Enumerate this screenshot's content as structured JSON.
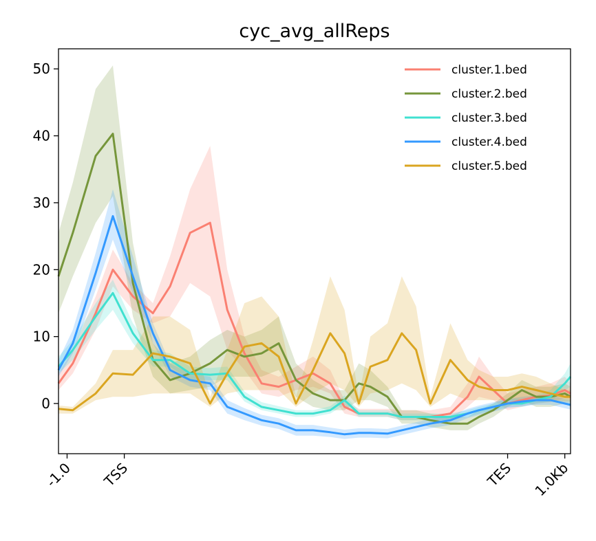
{
  "chart_data": {
    "type": "line",
    "title": "cyc_avg_allReps",
    "xlabel": "",
    "ylabel": "",
    "ylim": [
      -7.5,
      53
    ],
    "yticks": [
      0,
      10,
      20,
      30,
      40,
      50
    ],
    "xticks": [
      {
        "label": "-1.0",
        "x": -1.0
      },
      {
        "label": "TSS",
        "x": 0
      },
      {
        "label": "TES",
        "x": 6.7
      },
      {
        "label": "1.0Kb",
        "x": 7.7
      }
    ],
    "xlim": [
      -1.15,
      7.8
    ],
    "legend_position": "top-right",
    "grid": false,
    "x": [
      -1.15,
      -0.9,
      -0.5,
      -0.2,
      0.15,
      0.5,
      0.8,
      1.15,
      1.5,
      1.8,
      2.1,
      2.4,
      2.7,
      3.0,
      3.3,
      3.6,
      3.85,
      4.1,
      4.3,
      4.6,
      4.85,
      5.1,
      5.35,
      5.7,
      6.0,
      6.2,
      6.45,
      6.7,
      6.95,
      7.2,
      7.45,
      7.7,
      7.8
    ],
    "series": [
      {
        "name": "cluster.1.bed",
        "color": "#fa8072",
        "values": [
          3,
          6,
          13.5,
          20,
          16,
          13.5,
          17.5,
          25.5,
          27,
          14,
          7.5,
          3,
          2.5,
          3.5,
          4.5,
          3,
          -0.5,
          -1.5,
          -1.5,
          -1.5,
          -2,
          -2,
          -2,
          -1.5,
          1,
          4,
          2,
          0,
          0.5,
          1,
          1.2,
          2,
          1.5
        ],
        "lower": [
          2,
          4.5,
          11,
          17.5,
          14,
          12,
          13,
          18,
          16,
          8,
          5,
          1.5,
          1,
          2,
          2.5,
          1.5,
          -1.5,
          -2,
          -2,
          -2,
          -2.5,
          -2.5,
          -2.5,
          -2.5,
          -0.5,
          1,
          0.5,
          -1,
          -0.5,
          0,
          0.2,
          0.8,
          0.5
        ],
        "upper": [
          4.5,
          8,
          16,
          23,
          18,
          15,
          22,
          32,
          38.5,
          20,
          10,
          5,
          4,
          5.5,
          7,
          5,
          0.5,
          -0.8,
          -0.8,
          -0.8,
          -1,
          -1,
          -1,
          -0.5,
          3,
          7,
          4,
          1.5,
          2,
          2.5,
          3,
          4,
          3
        ]
      },
      {
        "name": "cluster.2.bed",
        "color": "#76963b",
        "values": [
          19,
          25.5,
          37,
          40.3,
          18,
          6.5,
          3.5,
          4.5,
          6,
          8,
          7,
          7.5,
          9,
          3.5,
          1.5,
          0.5,
          0.5,
          3,
          2.5,
          1,
          -2,
          -2,
          -2.5,
          -3,
          -3,
          -2,
          -1,
          0.5,
          2,
          1,
          1,
          1.5,
          1
        ],
        "lower": [
          13.5,
          19,
          27,
          31,
          13,
          4,
          1.5,
          2,
          2.5,
          4,
          4,
          4,
          5,
          1,
          -0.5,
          -1,
          -1,
          0.5,
          0.5,
          -0.5,
          -3,
          -3,
          -3.5,
          -4,
          -4,
          -3,
          -2,
          -0.5,
          0.5,
          -0.5,
          -0.5,
          0,
          -0.5
        ],
        "upper": [
          25.5,
          33,
          47,
          50.5,
          24,
          9,
          6,
          7,
          9.5,
          11,
          10,
          11,
          13,
          6,
          3.5,
          2,
          2,
          6,
          5,
          2.5,
          -1,
          -1,
          -1.5,
          -2,
          -2,
          -1,
          0,
          1.5,
          3.5,
          2.5,
          2.5,
          3,
          2.5
        ]
      },
      {
        "name": "cluster.3.bed",
        "color": "#40e0d0",
        "values": [
          5.5,
          8,
          13,
          16.5,
          10.5,
          6.5,
          6.5,
          4.5,
          4.3,
          4.5,
          1,
          -0.5,
          -1,
          -1.5,
          -1.5,
          -1,
          0.5,
          -1.5,
          -1.5,
          -1.5,
          -2,
          -2,
          -2,
          -2,
          -1.5,
          -1,
          -0.5,
          0,
          0,
          0.5,
          1,
          3,
          4
        ],
        "lower": [
          4.5,
          6.5,
          11,
          14,
          9,
          5.5,
          5.5,
          3.5,
          3.5,
          3.5,
          0.3,
          -1,
          -1.5,
          -2,
          -2,
          -1.5,
          -0.2,
          -2,
          -2,
          -2,
          -2.5,
          -2.5,
          -2.5,
          -2.5,
          -2,
          -1.5,
          -1,
          -0.5,
          -0.5,
          0,
          0.3,
          2,
          2.5
        ],
        "upper": [
          7,
          9.5,
          15,
          18.5,
          12,
          8,
          7.5,
          5.5,
          5.3,
          5.5,
          1.8,
          0.2,
          -0.4,
          -1,
          -1,
          -0.4,
          1.2,
          -1,
          -1,
          -1,
          -1.5,
          -1.5,
          -1.5,
          -1.5,
          -1,
          -0.5,
          0,
          0.7,
          0.7,
          1.2,
          2,
          4.5,
          6
        ]
      },
      {
        "name": "cluster.4.bed",
        "color": "#3399ff",
        "values": [
          5,
          9,
          19.5,
          28,
          19,
          10.5,
          5,
          3.5,
          3,
          -0.5,
          -1.5,
          -2.5,
          -3,
          -4,
          -4,
          -4.3,
          -4.6,
          -4.4,
          -4.4,
          -4.5,
          -4,
          -3.5,
          -3,
          -2.5,
          -1.5,
          -1,
          -0.5,
          0,
          0.3,
          0.5,
          0.5,
          0,
          -0.2
        ],
        "lower": [
          4,
          7.5,
          17,
          24.5,
          16.5,
          9,
          4,
          2.5,
          2,
          -1.5,
          -2.5,
          -3.3,
          -3.8,
          -4.8,
          -4.8,
          -5,
          -5.3,
          -5.1,
          -5.1,
          -5.2,
          -4.7,
          -4.2,
          -3.7,
          -3.2,
          -2.2,
          -1.7,
          -1.2,
          -0.7,
          -0.4,
          -0.2,
          -0.2,
          -0.7,
          -0.9
        ],
        "upper": [
          6.5,
          11,
          22.5,
          32,
          22,
          12,
          6,
          4.5,
          4,
          0.5,
          -0.7,
          -1.7,
          -2.2,
          -3.2,
          -3.2,
          -3.6,
          -3.9,
          -3.7,
          -3.7,
          -3.8,
          -3.3,
          -2.8,
          -2.3,
          -1.8,
          -0.8,
          -0.3,
          0.2,
          0.7,
          1,
          1.2,
          1.2,
          0.7,
          0.5
        ]
      },
      {
        "name": "cluster.5.bed",
        "color": "#daa520",
        "values": [
          -0.8,
          -1,
          1.5,
          4.5,
          4.3,
          7.5,
          7,
          6,
          0,
          4.5,
          8.5,
          9,
          7,
          0,
          5,
          10.5,
          7.5,
          0,
          5.5,
          6.5,
          10.5,
          8,
          0,
          6.5,
          3.5,
          2.5,
          2,
          2,
          2.5,
          2,
          1.5,
          1,
          1
        ],
        "lower": [
          -1.5,
          -1.5,
          0.5,
          1,
          1,
          1.5,
          1.5,
          1.5,
          -0.5,
          1.5,
          2,
          2,
          2,
          -0.5,
          1.5,
          3,
          2,
          -0.5,
          1.5,
          2,
          3,
          2,
          -0.5,
          1.5,
          0.5,
          0.5,
          0.5,
          0.5,
          0.5,
          0.5,
          0.5,
          0.3,
          0.3
        ],
        "upper": [
          -0.3,
          -0.5,
          3,
          8,
          8,
          13,
          13,
          11,
          1,
          8,
          15,
          16,
          13,
          1,
          9.5,
          19,
          14,
          1,
          10,
          12,
          19,
          14.5,
          1,
          12,
          6.5,
          5,
          4,
          4,
          4.5,
          4,
          3,
          2,
          2
        ]
      }
    ]
  }
}
